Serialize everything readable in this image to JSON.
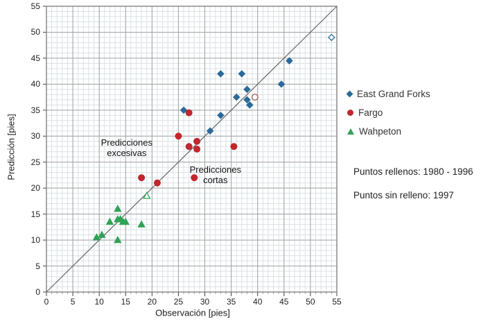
{
  "chart_data": {
    "type": "scatter",
    "title": "",
    "xlabel": "Observación [pies]",
    "ylabel": "Predicción [pies]",
    "xlim": [
      0,
      55
    ],
    "ylim": [
      0,
      55
    ],
    "xticks": [
      0,
      5,
      10,
      15,
      20,
      25,
      30,
      35,
      40,
      45,
      50,
      55
    ],
    "yticks": [
      0,
      5,
      10,
      15,
      20,
      25,
      30,
      35,
      40,
      45,
      50,
      55
    ],
    "grid": "minor-1-unit and major-5-unit, on",
    "identity_line": {
      "from": [
        0,
        0
      ],
      "to": [
        55,
        55
      ],
      "color": "#666666"
    },
    "series": [
      {
        "name": "East Grand Forks",
        "marker": "diamond",
        "color": "#2b6a99",
        "filled_points": [
          [
            26,
            35
          ],
          [
            31,
            31
          ],
          [
            33,
            34
          ],
          [
            33,
            42
          ],
          [
            36,
            37.5
          ],
          [
            37,
            42
          ],
          [
            38,
            37
          ],
          [
            38,
            39
          ],
          [
            38.5,
            36
          ],
          [
            44.5,
            40
          ],
          [
            46,
            44.5
          ]
        ],
        "open_points": [
          [
            54,
            49
          ]
        ],
        "open_color": "#2b6a99"
      },
      {
        "name": "Fargo",
        "marker": "circle",
        "color": "#c1272d",
        "filled_points": [
          [
            18,
            22
          ],
          [
            21,
            21
          ],
          [
            25,
            30
          ],
          [
            27,
            28
          ],
          [
            27,
            34.5
          ],
          [
            28,
            22
          ],
          [
            28.5,
            27.5
          ],
          [
            28.5,
            29
          ],
          [
            35.5,
            28
          ]
        ],
        "open_points": [
          [
            39.5,
            37.5
          ]
        ],
        "open_color": "#a2645c"
      },
      {
        "name": "Wahpeton",
        "marker": "triangle",
        "color": "#2fa356",
        "filled_points": [
          [
            9.5,
            10.5
          ],
          [
            10.5,
            11
          ],
          [
            12,
            13.5
          ],
          [
            13.5,
            10
          ],
          [
            13.5,
            14
          ],
          [
            13.5,
            16
          ],
          [
            14,
            14
          ],
          [
            14.5,
            13.5
          ],
          [
            15,
            13.5
          ],
          [
            18,
            13
          ]
        ],
        "open_points": [
          [
            19,
            18.5
          ]
        ],
        "open_color": "#2fa356"
      }
    ],
    "annotations": [
      {
        "lines": [
          "Predicciones",
          "excesivas"
        ],
        "x": 15.2,
        "y": 27.8
      },
      {
        "lines": [
          "Predicciones",
          "cortas"
        ],
        "x": 32.0,
        "y": 22.5
      }
    ],
    "legend": {
      "position": "right-of-plot",
      "items": [
        {
          "label": "East Grand Forks",
          "marker": "diamond",
          "color": "#2b6a99"
        },
        {
          "label": "Fargo",
          "marker": "circle",
          "color": "#c1272d"
        },
        {
          "label": "Wahpeton",
          "marker": "triangle",
          "color": "#2fa356"
        }
      ]
    },
    "notes": [
      "Puntos rellenos: 1980 - 1996",
      "Puntos sin relleno: 1997"
    ],
    "colors": {
      "minor_grid": "#d9e1e6",
      "major_grid": "#a3a3a3",
      "plot_border": "#7a7a7a",
      "background": "#ffffff"
    }
  }
}
